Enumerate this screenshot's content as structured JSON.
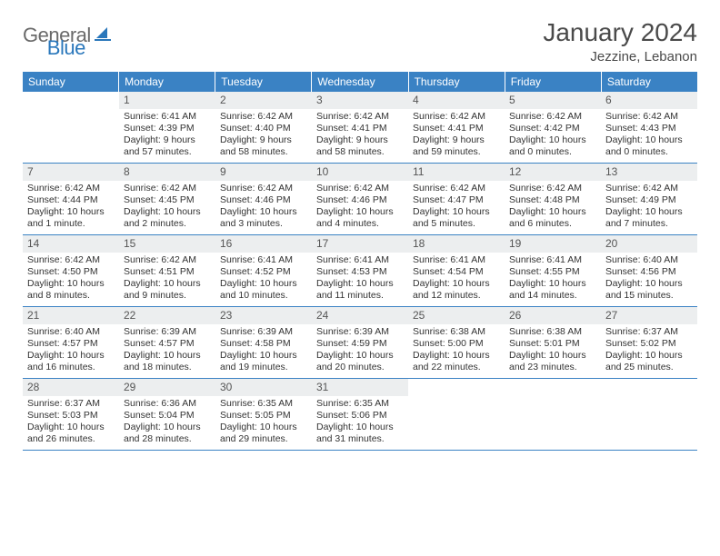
{
  "branding": {
    "word1": "General",
    "word2": "Blue",
    "color_general": "#6a6a6a",
    "color_blue": "#2a77bb",
    "icon_color": "#2a77bb"
  },
  "header": {
    "month_title": "January 2024",
    "location": "Jezzine, Lebanon",
    "title_color": "#4a4a4a",
    "title_fontsize": 28,
    "location_fontsize": 15
  },
  "calendar": {
    "header_bg": "#3a82c4",
    "header_fg": "#ffffff",
    "daynum_bg": "#eceeef",
    "daynum_fg": "#555555",
    "row_border": "#3a82c4",
    "body_fontsize": 10.5,
    "weekdays": [
      "Sunday",
      "Monday",
      "Tuesday",
      "Wednesday",
      "Thursday",
      "Friday",
      "Saturday"
    ],
    "weeks": [
      [
        {
          "empty": true
        },
        {
          "num": "1",
          "sunrise": "Sunrise: 6:41 AM",
          "sunset": "Sunset: 4:39 PM",
          "daylight": "Daylight: 9 hours and 57 minutes."
        },
        {
          "num": "2",
          "sunrise": "Sunrise: 6:42 AM",
          "sunset": "Sunset: 4:40 PM",
          "daylight": "Daylight: 9 hours and 58 minutes."
        },
        {
          "num": "3",
          "sunrise": "Sunrise: 6:42 AM",
          "sunset": "Sunset: 4:41 PM",
          "daylight": "Daylight: 9 hours and 58 minutes."
        },
        {
          "num": "4",
          "sunrise": "Sunrise: 6:42 AM",
          "sunset": "Sunset: 4:41 PM",
          "daylight": "Daylight: 9 hours and 59 minutes."
        },
        {
          "num": "5",
          "sunrise": "Sunrise: 6:42 AM",
          "sunset": "Sunset: 4:42 PM",
          "daylight": "Daylight: 10 hours and 0 minutes."
        },
        {
          "num": "6",
          "sunrise": "Sunrise: 6:42 AM",
          "sunset": "Sunset: 4:43 PM",
          "daylight": "Daylight: 10 hours and 0 minutes."
        }
      ],
      [
        {
          "num": "7",
          "sunrise": "Sunrise: 6:42 AM",
          "sunset": "Sunset: 4:44 PM",
          "daylight": "Daylight: 10 hours and 1 minute."
        },
        {
          "num": "8",
          "sunrise": "Sunrise: 6:42 AM",
          "sunset": "Sunset: 4:45 PM",
          "daylight": "Daylight: 10 hours and 2 minutes."
        },
        {
          "num": "9",
          "sunrise": "Sunrise: 6:42 AM",
          "sunset": "Sunset: 4:46 PM",
          "daylight": "Daylight: 10 hours and 3 minutes."
        },
        {
          "num": "10",
          "sunrise": "Sunrise: 6:42 AM",
          "sunset": "Sunset: 4:46 PM",
          "daylight": "Daylight: 10 hours and 4 minutes."
        },
        {
          "num": "11",
          "sunrise": "Sunrise: 6:42 AM",
          "sunset": "Sunset: 4:47 PM",
          "daylight": "Daylight: 10 hours and 5 minutes."
        },
        {
          "num": "12",
          "sunrise": "Sunrise: 6:42 AM",
          "sunset": "Sunset: 4:48 PM",
          "daylight": "Daylight: 10 hours and 6 minutes."
        },
        {
          "num": "13",
          "sunrise": "Sunrise: 6:42 AM",
          "sunset": "Sunset: 4:49 PM",
          "daylight": "Daylight: 10 hours and 7 minutes."
        }
      ],
      [
        {
          "num": "14",
          "sunrise": "Sunrise: 6:42 AM",
          "sunset": "Sunset: 4:50 PM",
          "daylight": "Daylight: 10 hours and 8 minutes."
        },
        {
          "num": "15",
          "sunrise": "Sunrise: 6:42 AM",
          "sunset": "Sunset: 4:51 PM",
          "daylight": "Daylight: 10 hours and 9 minutes."
        },
        {
          "num": "16",
          "sunrise": "Sunrise: 6:41 AM",
          "sunset": "Sunset: 4:52 PM",
          "daylight": "Daylight: 10 hours and 10 minutes."
        },
        {
          "num": "17",
          "sunrise": "Sunrise: 6:41 AM",
          "sunset": "Sunset: 4:53 PM",
          "daylight": "Daylight: 10 hours and 11 minutes."
        },
        {
          "num": "18",
          "sunrise": "Sunrise: 6:41 AM",
          "sunset": "Sunset: 4:54 PM",
          "daylight": "Daylight: 10 hours and 12 minutes."
        },
        {
          "num": "19",
          "sunrise": "Sunrise: 6:41 AM",
          "sunset": "Sunset: 4:55 PM",
          "daylight": "Daylight: 10 hours and 14 minutes."
        },
        {
          "num": "20",
          "sunrise": "Sunrise: 6:40 AM",
          "sunset": "Sunset: 4:56 PM",
          "daylight": "Daylight: 10 hours and 15 minutes."
        }
      ],
      [
        {
          "num": "21",
          "sunrise": "Sunrise: 6:40 AM",
          "sunset": "Sunset: 4:57 PM",
          "daylight": "Daylight: 10 hours and 16 minutes."
        },
        {
          "num": "22",
          "sunrise": "Sunrise: 6:39 AM",
          "sunset": "Sunset: 4:57 PM",
          "daylight": "Daylight: 10 hours and 18 minutes."
        },
        {
          "num": "23",
          "sunrise": "Sunrise: 6:39 AM",
          "sunset": "Sunset: 4:58 PM",
          "daylight": "Daylight: 10 hours and 19 minutes."
        },
        {
          "num": "24",
          "sunrise": "Sunrise: 6:39 AM",
          "sunset": "Sunset: 4:59 PM",
          "daylight": "Daylight: 10 hours and 20 minutes."
        },
        {
          "num": "25",
          "sunrise": "Sunrise: 6:38 AM",
          "sunset": "Sunset: 5:00 PM",
          "daylight": "Daylight: 10 hours and 22 minutes."
        },
        {
          "num": "26",
          "sunrise": "Sunrise: 6:38 AM",
          "sunset": "Sunset: 5:01 PM",
          "daylight": "Daylight: 10 hours and 23 minutes."
        },
        {
          "num": "27",
          "sunrise": "Sunrise: 6:37 AM",
          "sunset": "Sunset: 5:02 PM",
          "daylight": "Daylight: 10 hours and 25 minutes."
        }
      ],
      [
        {
          "num": "28",
          "sunrise": "Sunrise: 6:37 AM",
          "sunset": "Sunset: 5:03 PM",
          "daylight": "Daylight: 10 hours and 26 minutes."
        },
        {
          "num": "29",
          "sunrise": "Sunrise: 6:36 AM",
          "sunset": "Sunset: 5:04 PM",
          "daylight": "Daylight: 10 hours and 28 minutes."
        },
        {
          "num": "30",
          "sunrise": "Sunrise: 6:35 AM",
          "sunset": "Sunset: 5:05 PM",
          "daylight": "Daylight: 10 hours and 29 minutes."
        },
        {
          "num": "31",
          "sunrise": "Sunrise: 6:35 AM",
          "sunset": "Sunset: 5:06 PM",
          "daylight": "Daylight: 10 hours and 31 minutes."
        },
        {
          "empty": true
        },
        {
          "empty": true
        },
        {
          "empty": true
        }
      ]
    ]
  }
}
